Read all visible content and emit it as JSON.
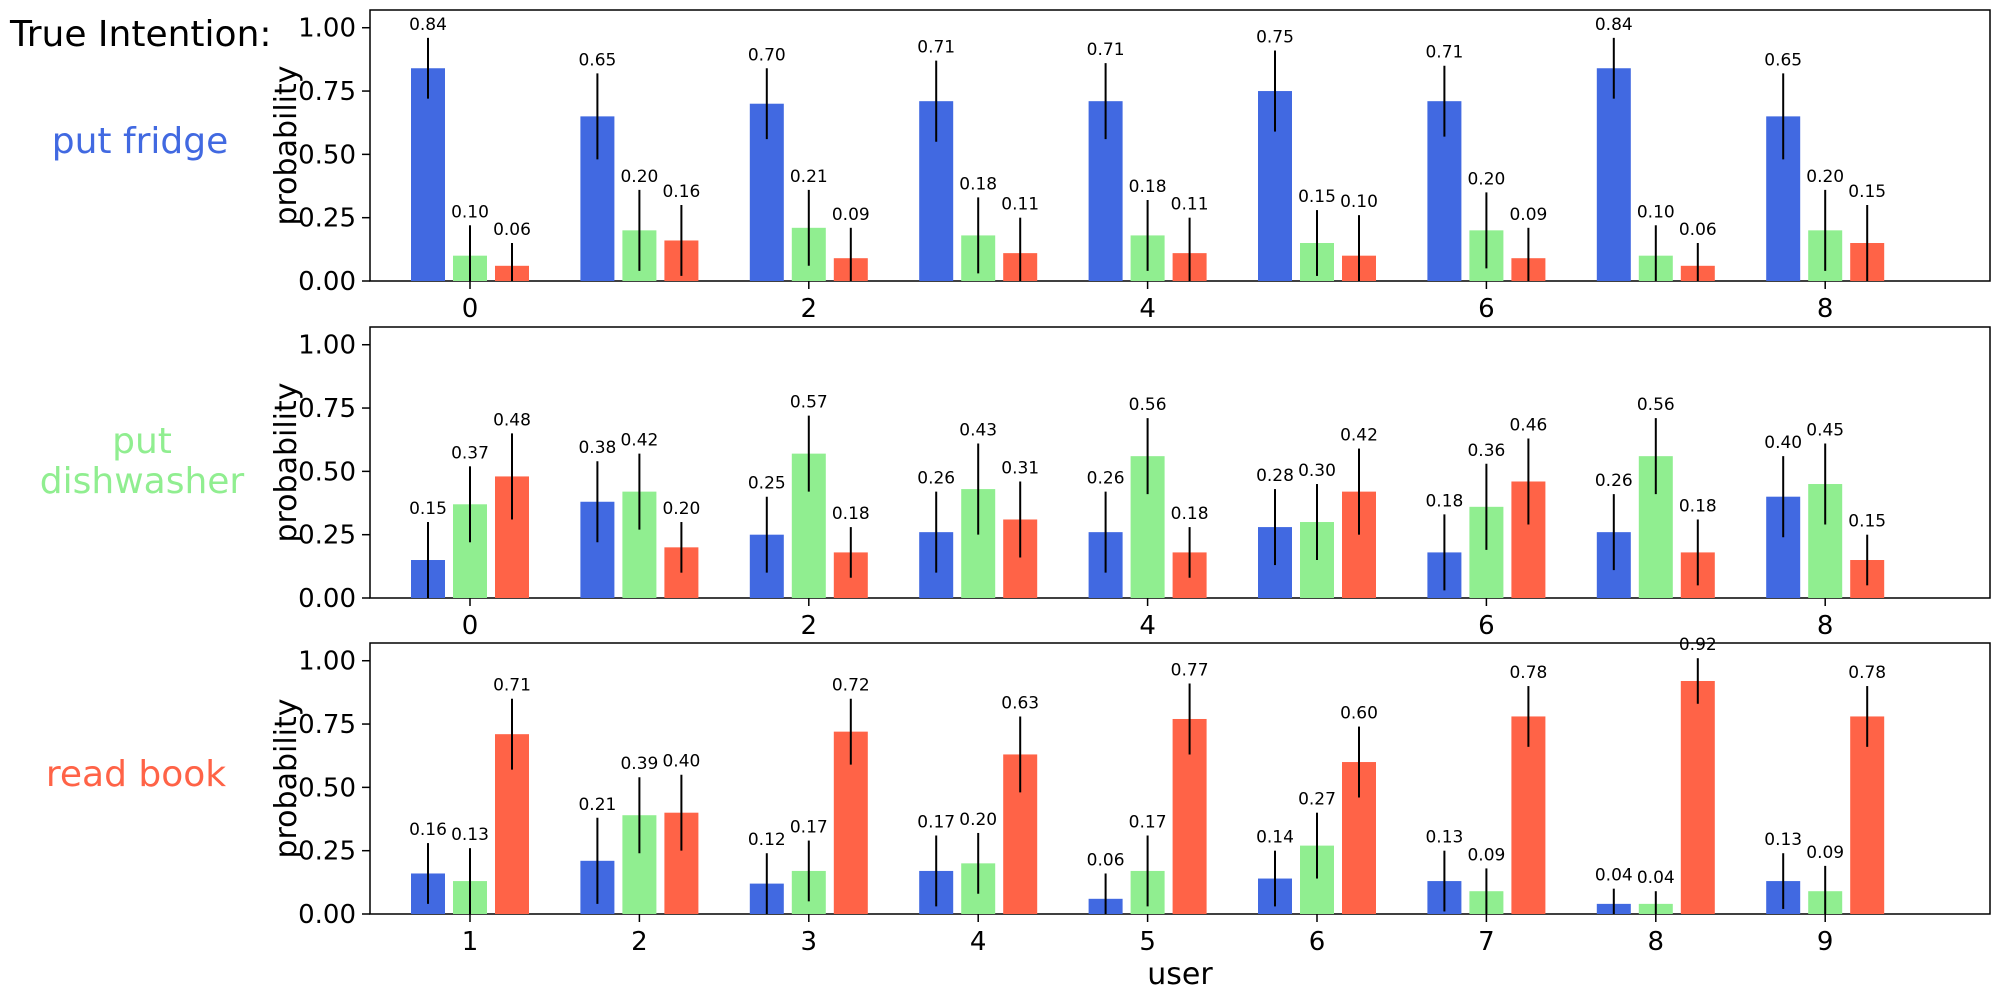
{
  "heading": "True Intention:",
  "colors": {
    "fridge": "#4169e1",
    "dishwasher": "#90ee90",
    "book": "#ff6347"
  },
  "chart_data": [
    {
      "type": "bar",
      "intention_label": "put fridge",
      "intention_color": "#4169e1",
      "ylabel": "probability",
      "xlabel": "",
      "ylim": [
        0,
        1.07
      ],
      "yticks": [
        "0.00",
        "0.25",
        "0.50",
        "0.75",
        "1.00"
      ],
      "xticks": [
        "0",
        "2",
        "4",
        "6",
        "8"
      ],
      "xtick_positions": [
        0,
        2,
        4,
        6,
        8
      ],
      "series": [
        {
          "name": "put fridge",
          "color": "#4169e1",
          "values": [
            0.84,
            0.65,
            0.7,
            0.71,
            0.71,
            0.75,
            0.71,
            0.84,
            0.65
          ],
          "errors": [
            0.12,
            0.17,
            0.14,
            0.16,
            0.15,
            0.16,
            0.14,
            0.12,
            0.17
          ],
          "labels": [
            "0.84",
            "0.65",
            "0.70",
            "0.71",
            "0.71",
            "0.75",
            "0.71",
            "0.84",
            "0.65"
          ]
        },
        {
          "name": "put dishwasher",
          "color": "#90ee90",
          "values": [
            0.1,
            0.2,
            0.21,
            0.18,
            0.18,
            0.15,
            0.2,
            0.1,
            0.2
          ],
          "errors": [
            0.12,
            0.16,
            0.15,
            0.15,
            0.14,
            0.13,
            0.15,
            0.12,
            0.16
          ],
          "labels": [
            "0.10",
            "0.20",
            "0.21",
            "0.18",
            "0.18",
            "0.15",
            "0.20",
            "0.10",
            "0.20"
          ]
        },
        {
          "name": "read book",
          "color": "#ff6347",
          "values": [
            0.06,
            0.16,
            0.09,
            0.11,
            0.11,
            0.1,
            0.09,
            0.06,
            0.15
          ],
          "errors": [
            0.09,
            0.14,
            0.12,
            0.14,
            0.14,
            0.16,
            0.12,
            0.09,
            0.15
          ],
          "labels": [
            "0.06",
            "0.16",
            "0.09",
            "0.11",
            "0.11",
            "0.10",
            "0.09",
            "0.06",
            "0.15"
          ]
        }
      ]
    },
    {
      "type": "bar",
      "intention_label": "put dishwasher",
      "intention_color": "#90ee90",
      "ylabel": "probability",
      "xlabel": "",
      "ylim": [
        0,
        1.07
      ],
      "yticks": [
        "0.00",
        "0.25",
        "0.50",
        "0.75",
        "1.00"
      ],
      "xticks": [
        "0",
        "2",
        "4",
        "6",
        "8"
      ],
      "xtick_positions": [
        0,
        2,
        4,
        6,
        8
      ],
      "series": [
        {
          "name": "put fridge",
          "color": "#4169e1",
          "values": [
            0.15,
            0.38,
            0.25,
            0.26,
            0.26,
            0.28,
            0.18,
            0.26,
            0.4
          ],
          "errors": [
            0.15,
            0.16,
            0.15,
            0.16,
            0.16,
            0.15,
            0.15,
            0.15,
            0.16
          ],
          "labels": [
            "0.15",
            "0.38",
            "0.25",
            "0.26",
            "0.26",
            "0.28",
            "0.18",
            "0.26",
            "0.40"
          ]
        },
        {
          "name": "put dishwasher",
          "color": "#90ee90",
          "values": [
            0.37,
            0.42,
            0.57,
            0.43,
            0.56,
            0.3,
            0.36,
            0.56,
            0.45
          ],
          "errors": [
            0.15,
            0.15,
            0.15,
            0.18,
            0.15,
            0.15,
            0.17,
            0.15,
            0.16
          ],
          "labels": [
            "0.37",
            "0.42",
            "0.57",
            "0.43",
            "0.56",
            "0.30",
            "0.36",
            "0.56",
            "0.45"
          ]
        },
        {
          "name": "read book",
          "color": "#ff6347",
          "values": [
            0.48,
            0.2,
            0.18,
            0.31,
            0.18,
            0.42,
            0.46,
            0.18,
            0.15
          ],
          "errors": [
            0.17,
            0.1,
            0.1,
            0.15,
            0.1,
            0.17,
            0.17,
            0.13,
            0.1
          ],
          "labels": [
            "0.48",
            "0.20",
            "0.18",
            "0.31",
            "0.18",
            "0.42",
            "0.46",
            "0.18",
            "0.15"
          ]
        }
      ]
    },
    {
      "type": "bar",
      "intention_label": "read book",
      "intention_color": "#ff6347",
      "ylabel": "probability",
      "xlabel": "user",
      "ylim": [
        0,
        1.07
      ],
      "yticks": [
        "0.00",
        "0.25",
        "0.50",
        "0.75",
        "1.00"
      ],
      "xticks": [
        "1",
        "2",
        "3",
        "4",
        "5",
        "6",
        "7",
        "8",
        "9"
      ],
      "xtick_positions": [
        0,
        1,
        2,
        3,
        4,
        5,
        6,
        7,
        8
      ],
      "series": [
        {
          "name": "put fridge",
          "color": "#4169e1",
          "values": [
            0.16,
            0.21,
            0.12,
            0.17,
            0.06,
            0.14,
            0.13,
            0.04,
            0.13
          ],
          "errors": [
            0.12,
            0.17,
            0.12,
            0.14,
            0.1,
            0.11,
            0.12,
            0.06,
            0.11
          ],
          "labels": [
            "0.16",
            "0.21",
            "0.12",
            "0.17",
            "0.06",
            "0.14",
            "0.13",
            "0.04",
            "0.13"
          ]
        },
        {
          "name": "put dishwasher",
          "color": "#90ee90",
          "values": [
            0.13,
            0.39,
            0.17,
            0.2,
            0.17,
            0.27,
            0.09,
            0.04,
            0.09
          ],
          "errors": [
            0.13,
            0.15,
            0.12,
            0.12,
            0.14,
            0.13,
            0.09,
            0.05,
            0.1
          ],
          "labels": [
            "0.13",
            "0.39",
            "0.17",
            "0.20",
            "0.17",
            "0.27",
            "0.09",
            "0.04",
            "0.09"
          ]
        },
        {
          "name": "read book",
          "color": "#ff6347",
          "values": [
            0.71,
            0.4,
            0.72,
            0.63,
            0.77,
            0.6,
            0.78,
            0.92,
            0.78
          ],
          "errors": [
            0.14,
            0.15,
            0.13,
            0.15,
            0.14,
            0.14,
            0.12,
            0.09,
            0.12
          ],
          "labels": [
            "0.71",
            "0.40",
            "0.72",
            "0.63",
            "0.77",
            "0.60",
            "0.78",
            "0.92",
            "0.78"
          ]
        }
      ]
    }
  ]
}
